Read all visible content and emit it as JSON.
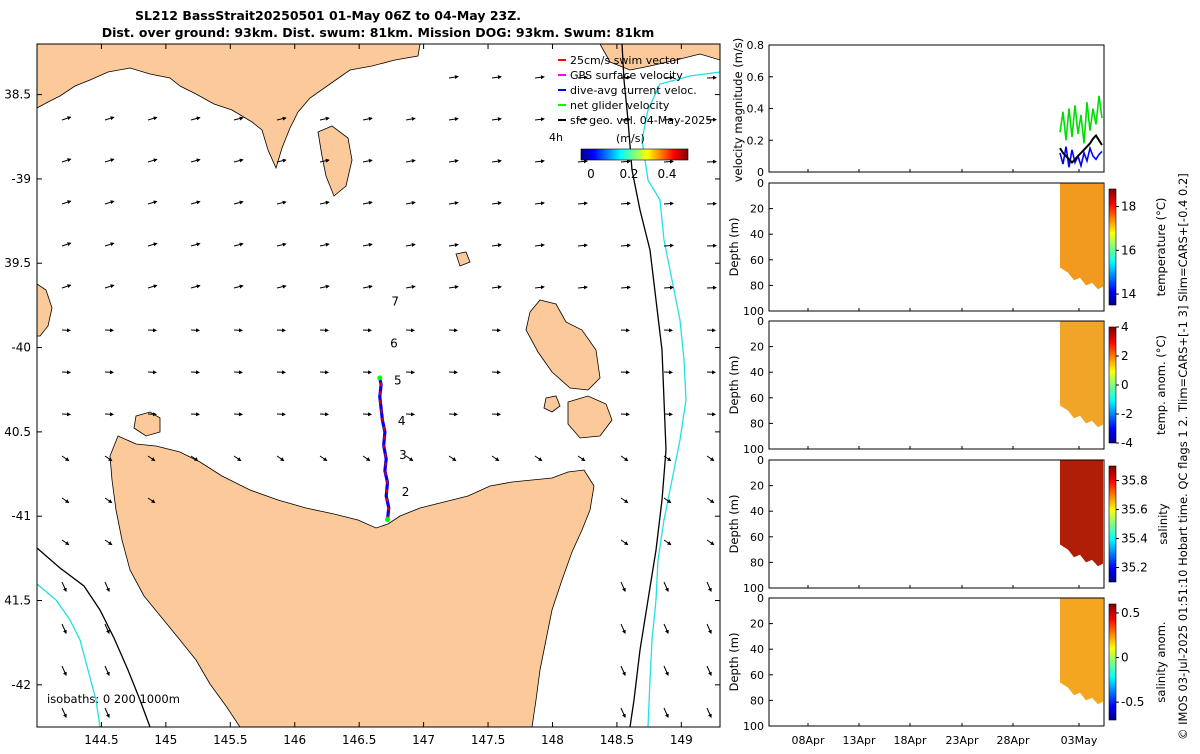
{
  "chart_data": [
    {
      "type": "map",
      "title_line1": "SL212 BassStrait20250501 01-May 06Z to 04-May 23Z.",
      "title_line2": "Dist. over ground: 93km. Dist. swum: 81km. Mission DOG: 93km. Swum: 81km",
      "xlim": [
        144.0,
        149.3
      ],
      "ylim": [
        -42.25,
        -38.2
      ],
      "x_ticks": [
        144.5,
        145,
        145.5,
        146,
        146.5,
        147,
        147.5,
        148,
        148.5,
        149
      ],
      "x_tick_labels": [
        "144.5",
        "145",
        "145.5",
        "146",
        "146.5",
        "147",
        "147.5",
        "148",
        "148.5",
        "149"
      ],
      "y_ticks": [
        -38.5,
        -39,
        -39.5,
        -40,
        -40.5,
        -41,
        -41.5,
        -42
      ],
      "y_tick_labels": [
        "38.5",
        "-39",
        "39.5",
        "-40",
        "40.5",
        "-41",
        "41.5",
        "-42"
      ],
      "legend": [
        {
          "label": "25cm/s swim vector",
          "color": "#ff0000"
        },
        {
          "label": "GPS surface velocity",
          "color": "#ff00ff"
        },
        {
          "label": "dive-avg current veloc.",
          "color": "#0000ff"
        },
        {
          "label": "net glider velocity",
          "color": "#00ff00"
        },
        {
          "label": "sfc geo. vel. 04-May-2025",
          "color": "#000000"
        }
      ],
      "legend_extra": "4h",
      "colorbar_title": "(m/s)",
      "colorbar_ticks": [
        "0",
        "0.2",
        "0.4"
      ],
      "isobath_label": "isobaths: 0  200  1000m",
      "day_markers": [
        {
          "label": "2",
          "lon": 146.86,
          "lat": -40.88
        },
        {
          "label": "3",
          "lon": 146.84,
          "lat": -40.66
        },
        {
          "label": "4",
          "lon": 146.83,
          "lat": -40.46
        },
        {
          "label": "5",
          "lon": 146.8,
          "lat": -40.22
        },
        {
          "label": "6",
          "lon": 146.77,
          "lat": -40.0
        },
        {
          "label": "7",
          "lon": 146.78,
          "lat": -39.75
        }
      ],
      "track": [
        [
          146.72,
          -41.02
        ],
        [
          146.73,
          -40.95
        ],
        [
          146.71,
          -40.88
        ],
        [
          146.72,
          -40.8
        ],
        [
          146.7,
          -40.73
        ],
        [
          146.71,
          -40.66
        ],
        [
          146.69,
          -40.58
        ],
        [
          146.7,
          -40.5
        ],
        [
          146.68,
          -40.43
        ],
        [
          146.67,
          -40.36
        ],
        [
          146.66,
          -40.29
        ],
        [
          146.67,
          -40.22
        ],
        [
          146.66,
          -40.18
        ]
      ]
    },
    {
      "type": "line",
      "ylabel": "velocity magnitude (m/s)",
      "ylim": [
        0,
        0.8
      ],
      "y_ticks": [
        "0",
        "0.2",
        "0.4",
        "0.6",
        "0.8"
      ],
      "x_tick_labels": [
        "08Apr",
        "13Apr",
        "18Apr",
        "23Apr",
        "28Apr",
        "03May"
      ],
      "series": [
        {
          "color": "#00dd00",
          "values": [
            0.25,
            0.38,
            0.2,
            0.4,
            0.22,
            0.42,
            0.24,
            0.36,
            0.18,
            0.44,
            0.26,
            0.4,
            0.3,
            0.48,
            0.34
          ]
        },
        {
          "color": "#0000ff",
          "values": [
            0.12,
            0.05,
            0.16,
            0.03,
            0.14,
            0.06,
            0.1,
            0.04,
            0.12,
            0.07,
            0.15,
            0.1,
            0.08,
            0.11,
            0.13
          ]
        },
        {
          "color": "#000000",
          "values": [
            0.15,
            0.12,
            0.1,
            0.08,
            0.06,
            0.08,
            0.1,
            0.12,
            0.14,
            0.16,
            0.18,
            0.21,
            0.23,
            0.2,
            0.17
          ]
        }
      ]
    },
    {
      "type": "heatmap",
      "ylabel": "Depth (m)",
      "y_ticks": [
        "0",
        "20",
        "40",
        "60",
        "80",
        "100"
      ],
      "colorbar_label": "temperature (°C)",
      "colorbar_ticks": [
        "18",
        "16",
        "14"
      ],
      "fill": "#f29a1e"
    },
    {
      "type": "heatmap",
      "ylabel": "Depth (m)",
      "y_ticks": [
        "0",
        "20",
        "40",
        "60",
        "80",
        "100"
      ],
      "colorbar_label": "temp. anom. (°C)",
      "colorbar_ticks": [
        "4",
        "2",
        "0",
        "-2",
        "-4"
      ],
      "fill": "#f0a428"
    },
    {
      "type": "heatmap",
      "ylabel": "Depth (m)",
      "y_ticks": [
        "0",
        "20",
        "40",
        "60",
        "80",
        "100"
      ],
      "colorbar_label_1": "salinity",
      "colorbar_label_2": "",
      "colorbar_ticks": [
        "35.8",
        "35.6",
        "35.4",
        "35.2"
      ],
      "fill": "#b01e08"
    },
    {
      "type": "heatmap",
      "ylabel": "Depth (m)",
      "y_ticks": [
        "0",
        "20",
        "40",
        "60",
        "80",
        "100"
      ],
      "colorbar_label": "salinity anom.",
      "colorbar_ticks": [
        "0.5",
        "0",
        "-0.5"
      ],
      "fill": "#f3a620"
    }
  ],
  "side_note": "© IMOS 03-Jul-2025 01:51:10 Hobart time. QC flags 1  2. Tlim=CARS+[-1 3] Slim=CARS+[-0.4 0.2]",
  "colors": {
    "land": "#fbc99a",
    "sea": "#ffffff",
    "isobath_200": "#000000",
    "isobath_1000": "#22e0e6"
  }
}
